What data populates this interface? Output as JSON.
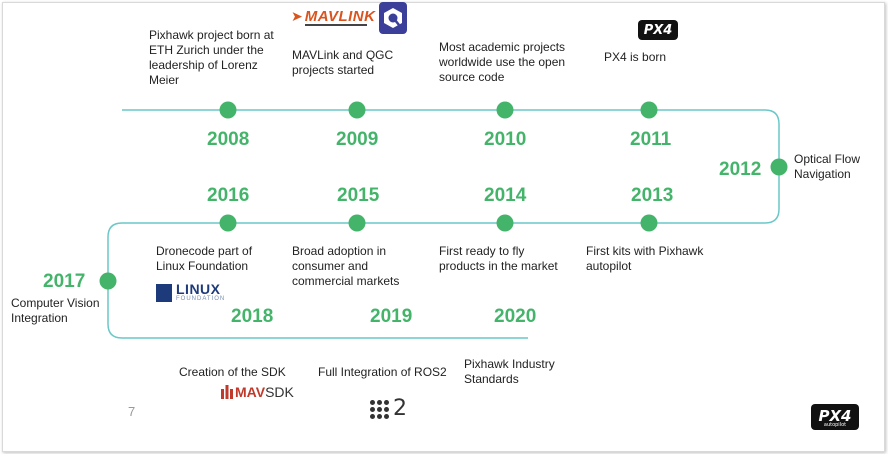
{
  "colors": {
    "track": "#6cc7c9",
    "milestone": "#45b46b",
    "year_text": "#45b46b"
  },
  "milestones": [
    {
      "year": "2008",
      "text": "Pixhawk project born at ETH Zurich under the leadership of Lorenz Meier"
    },
    {
      "year": "2009",
      "text": "MAVLink and QGC projects started"
    },
    {
      "year": "2010",
      "text": "Most academic projects worldwide use the open source code"
    },
    {
      "year": "2011",
      "text": "PX4 is born"
    },
    {
      "year": "2012",
      "text": "Optical Flow Navigation"
    },
    {
      "year": "2013",
      "text": "First kits with Pixhawk autopilot"
    },
    {
      "year": "2014",
      "text": "First ready to fly products in the market"
    },
    {
      "year": "2015",
      "text": "Broad adoption in consumer and commercial markets"
    },
    {
      "year": "2016",
      "text": "Dronecode part of Linux Foundation"
    },
    {
      "year": "2017",
      "text": "Computer Vision Integration"
    },
    {
      "year": "2018",
      "text": "Creation of the SDK"
    },
    {
      "year": "2019",
      "text": "Full Integration of ROS2"
    },
    {
      "year": "2020",
      "text": "Pixhawk Industry Standards"
    }
  ],
  "logos": {
    "mavlink": "MAVLINK",
    "px4": "PX4",
    "px4_sub": "autopilot",
    "linux_big": "LINUX",
    "linux_small": "FOUNDATION",
    "mavsdk_a": "MAV",
    "mavsdk_b": "SDK",
    "ros2": "2"
  },
  "slide_number": "7"
}
